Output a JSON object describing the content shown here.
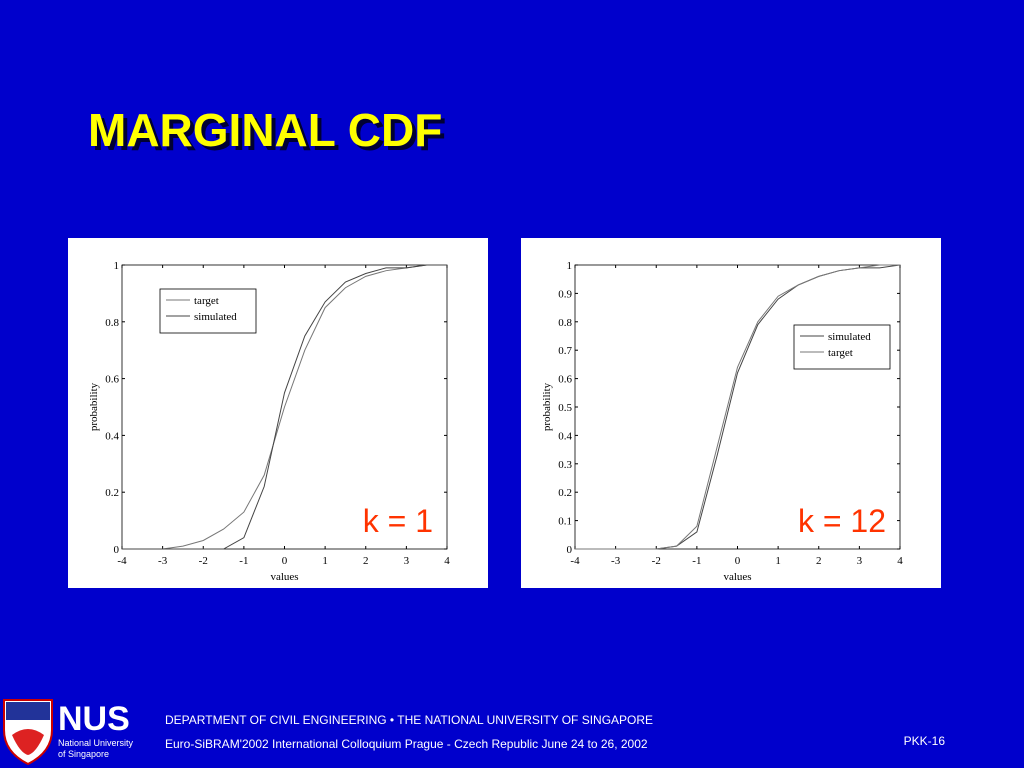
{
  "title": "MARGINAL CDF",
  "chart_data": [
    {
      "type": "line",
      "xlabel": "values",
      "ylabel": "probability",
      "annotation": "k = 1",
      "x": [
        -4,
        -3.5,
        -3,
        -2.5,
        -2,
        -1.5,
        -1,
        -0.5,
        0,
        0.5,
        1,
        1.5,
        2,
        2.5,
        3,
        3.5,
        4
      ],
      "series": [
        {
          "name": "target",
          "color": "#777777",
          "values": [
            0,
            0,
            0,
            0.01,
            0.03,
            0.07,
            0.13,
            0.26,
            0.5,
            0.7,
            0.85,
            0.92,
            0.96,
            0.98,
            0.99,
            1,
            1
          ]
        },
        {
          "name": "simulated",
          "color": "#444444",
          "values": [
            0,
            0,
            0,
            0,
            0,
            0,
            0.04,
            0.22,
            0.55,
            0.75,
            0.87,
            0.94,
            0.97,
            0.99,
            0.99,
            1,
            1
          ]
        }
      ],
      "xlim": [
        -4,
        4
      ],
      "xticks": [
        -4,
        -3,
        -2,
        -1,
        0,
        1,
        2,
        3,
        4
      ],
      "ylim": [
        0,
        1
      ],
      "yticks": [
        0,
        0.2,
        0.4,
        0.6,
        0.8,
        1
      ],
      "legend": "upper left"
    },
    {
      "type": "line",
      "xlabel": "values",
      "ylabel": "probability",
      "annotation": "k = 12",
      "x": [
        -4,
        -3.5,
        -3,
        -2.5,
        -2,
        -1.5,
        -1,
        -0.5,
        0,
        0.5,
        1,
        1.5,
        2,
        2.5,
        3,
        3.5,
        4
      ],
      "series": [
        {
          "name": "simulated",
          "color": "#444444",
          "values": [
            0,
            0,
            0,
            0,
            0,
            0.01,
            0.06,
            0.33,
            0.62,
            0.79,
            0.88,
            0.93,
            0.96,
            0.98,
            0.99,
            0.99,
            1
          ]
        },
        {
          "name": "target",
          "color": "#777777",
          "values": [
            0,
            0,
            0,
            0,
            0,
            0.01,
            0.08,
            0.36,
            0.64,
            0.8,
            0.89,
            0.93,
            0.96,
            0.98,
            0.99,
            1,
            1
          ]
        }
      ],
      "xlim": [
        -4,
        4
      ],
      "xticks": [
        -4,
        -3,
        -2,
        -1,
        0,
        1,
        2,
        3,
        4
      ],
      "ylim": [
        0,
        1
      ],
      "yticks": [
        0,
        0.1,
        0.2,
        0.3,
        0.4,
        0.5,
        0.6,
        0.7,
        0.8,
        0.9,
        1
      ],
      "legend": "center right"
    }
  ],
  "footer": {
    "logo": "NUS",
    "logo_line1": "National University",
    "logo_line2": "of Singapore",
    "line1": "DEPARTMENT OF CIVIL ENGINEERING  •  THE NATIONAL UNIVERSITY OF SINGAPORE",
    "line2": "Euro-SiBRAM'2002 International Colloquium Prague - Czech Republic June 24 to 26, 2002",
    "page": "PKK-16"
  }
}
